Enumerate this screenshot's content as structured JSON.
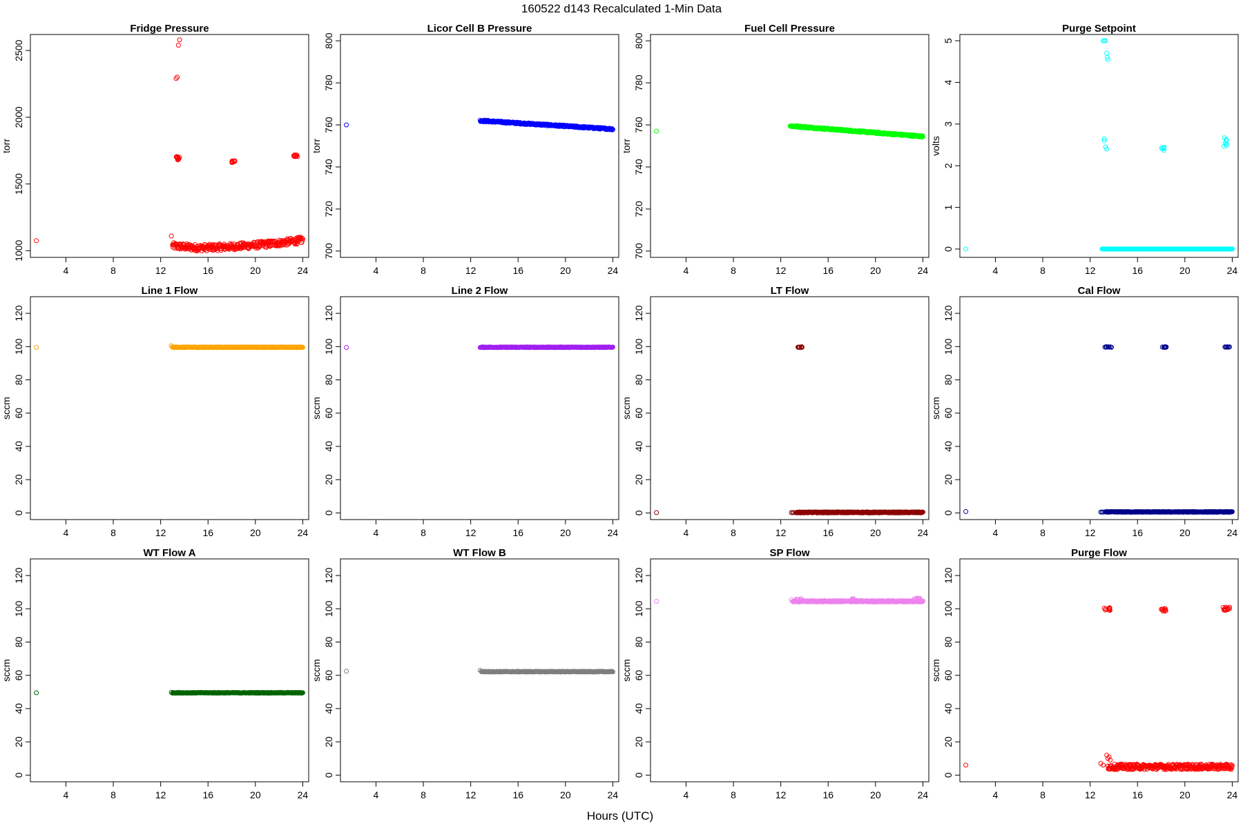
{
  "figure": {
    "title": "160522   d143   Recalculated 1-Min Data",
    "xlabel": "Hours (UTC)"
  },
  "chart_data": [
    {
      "type": "scatter",
      "title": "Fridge Pressure",
      "ylabel": "torr",
      "color": "#ff0000",
      "xlim": [
        1,
        24.5
      ],
      "ylim": [
        950,
        2620
      ],
      "yticks": [
        1000,
        1500,
        2000,
        2500
      ],
      "xticks": [
        4,
        8,
        12,
        16,
        20,
        24
      ],
      "points": [
        [
          1.5,
          1075
        ],
        [
          12.9,
          1110
        ],
        [
          13.3,
          2290
        ],
        [
          13.4,
          2300
        ],
        [
          13.5,
          2540
        ],
        [
          13.6,
          2580
        ]
      ],
      "clusters": [
        {
          "x": [
            13.3,
            13.6
          ],
          "y": [
            1680,
            1705
          ],
          "n": 10
        },
        {
          "x": [
            18.0,
            18.3
          ],
          "y": [
            1660,
            1680
          ],
          "n": 8
        },
        {
          "x": [
            23.2,
            23.6
          ],
          "y": [
            1705,
            1720
          ],
          "n": 10
        }
      ],
      "band": {
        "x0": 13.0,
        "x1": 24.0,
        "y0": 1050,
        "y1": 1080,
        "ymid": 1020,
        "spread": 25
      }
    },
    {
      "type": "scatter",
      "title": "Licor Cell B Pressure",
      "ylabel": "torr",
      "color": "#0000ff",
      "xlim": [
        1,
        24.5
      ],
      "ylim": [
        697,
        803
      ],
      "yticks": [
        700,
        720,
        740,
        760,
        780,
        800
      ],
      "xticks": [
        4,
        8,
        12,
        16,
        20,
        24
      ],
      "points": [
        [
          1.5,
          760
        ]
      ],
      "band": {
        "x0": 12.8,
        "x1": 24.0,
        "y0": 762,
        "y1": 758,
        "spread": 0.4
      }
    },
    {
      "type": "scatter",
      "title": "Fuel Cell Pressure",
      "ylabel": "torr",
      "color": "#00ff00",
      "xlim": [
        1,
        24.5
      ],
      "ylim": [
        697,
        803
      ],
      "yticks": [
        700,
        720,
        740,
        760,
        780,
        800
      ],
      "xticks": [
        4,
        8,
        12,
        16,
        20,
        24
      ],
      "points": [
        [
          1.5,
          757
        ]
      ],
      "band": {
        "x0": 12.8,
        "x1": 24.0,
        "y0": 759.5,
        "y1": 754.5,
        "spread": 0.4
      }
    },
    {
      "type": "scatter",
      "title": "Purge Setpoint",
      "ylabel": "volts",
      "color": "#00ffff",
      "xlim": [
        1,
        24.5
      ],
      "ylim": [
        -0.2,
        5.15
      ],
      "yticks": [
        0,
        1,
        2,
        3,
        4,
        5
      ],
      "xticks": [
        4,
        8,
        12,
        16,
        20,
        24
      ],
      "points": [
        [
          1.5,
          0
        ],
        [
          13.1,
          5.0
        ],
        [
          13.2,
          5.0
        ],
        [
          13.3,
          5.0
        ],
        [
          13.4,
          4.7
        ],
        [
          13.45,
          4.6
        ],
        [
          13.5,
          4.55
        ],
        [
          13.2,
          2.65
        ],
        [
          13.2,
          2.6
        ],
        [
          13.3,
          2.45
        ],
        [
          13.4,
          2.4
        ]
      ],
      "clusters": [
        {
          "x": [
            18.0,
            18.3
          ],
          "y": [
            2.37,
            2.45
          ],
          "n": 6
        },
        {
          "x": [
            23.2,
            23.6
          ],
          "y": [
            2.4,
            2.7
          ],
          "n": 8
        }
      ],
      "band": {
        "x0": 13.0,
        "x1": 24.0,
        "y0": 0,
        "y1": 0,
        "spread": 0
      }
    },
    {
      "type": "scatter",
      "title": "Line 1 Flow",
      "ylabel": "sccm",
      "color": "#ffa500",
      "xlim": [
        1,
        24.5
      ],
      "ylim": [
        -4,
        130
      ],
      "yticks": [
        0,
        20,
        40,
        60,
        80,
        100,
        120
      ],
      "xticks": [
        4,
        8,
        12,
        16,
        20,
        24
      ],
      "points": [
        [
          1.5,
          99.5
        ],
        [
          12.9,
          100.5
        ]
      ],
      "band": {
        "x0": 13.0,
        "x1": 24.0,
        "y0": 99.6,
        "y1": 99.6,
        "spread": 0.2
      }
    },
    {
      "type": "scatter",
      "title": "Line 2 Flow",
      "ylabel": "sccm",
      "color": "#a020f0",
      "xlim": [
        1,
        24.5
      ],
      "ylim": [
        -4,
        130
      ],
      "yticks": [
        0,
        20,
        40,
        60,
        80,
        100,
        120
      ],
      "xticks": [
        4,
        8,
        12,
        16,
        20,
        24
      ],
      "points": [
        [
          1.5,
          99.5
        ]
      ],
      "band": {
        "x0": 12.8,
        "x1": 24.0,
        "y0": 99.6,
        "y1": 99.6,
        "spread": 0.2
      }
    },
    {
      "type": "scatter",
      "title": "LT Flow",
      "ylabel": "sccm",
      "color": "#8b0000",
      "xlim": [
        1,
        24.5
      ],
      "ylim": [
        -4,
        130
      ],
      "yticks": [
        0,
        20,
        40,
        60,
        80,
        100,
        120
      ],
      "xticks": [
        4,
        8,
        12,
        16,
        20,
        24
      ],
      "points": [
        [
          1.5,
          0.2
        ],
        [
          12.9,
          0.2
        ],
        [
          13.0,
          0.2
        ],
        [
          13.1,
          0.2
        ]
      ],
      "clusters": [
        {
          "x": [
            13.4,
            13.8
          ],
          "y": [
            99.4,
            99.9
          ],
          "n": 12
        }
      ],
      "band": {
        "x0": 13.3,
        "x1": 24.0,
        "y0": 0.3,
        "y1": 0.3,
        "spread": 0.3
      }
    },
    {
      "type": "scatter",
      "title": "Cal Flow",
      "ylabel": "sccm",
      "color": "#00008b",
      "xlim": [
        1,
        24.5
      ],
      "ylim": [
        -4,
        130
      ],
      "yticks": [
        0,
        20,
        40,
        60,
        80,
        100,
        120
      ],
      "xticks": [
        4,
        8,
        12,
        16,
        20,
        24
      ],
      "points": [
        [
          1.5,
          0.8
        ],
        [
          12.9,
          0.5
        ],
        [
          13.0,
          0.5
        ],
        [
          13.1,
          0.5
        ]
      ],
      "clusters": [
        {
          "x": [
            13.2,
            13.8
          ],
          "y": [
            99.5,
            99.9
          ],
          "n": 12
        },
        {
          "x": [
            18.0,
            18.5
          ],
          "y": [
            99.5,
            99.9
          ],
          "n": 10
        },
        {
          "x": [
            23.3,
            23.9
          ],
          "y": [
            99.5,
            99.9
          ],
          "n": 12
        }
      ],
      "band": {
        "x0": 13.3,
        "x1": 24.0,
        "y0": 0.6,
        "y1": 0.6,
        "spread": 0.2
      }
    },
    {
      "type": "scatter",
      "title": "WT Flow A",
      "ylabel": "sccm",
      "color": "#006400",
      "xlim": [
        1,
        24.5
      ],
      "ylim": [
        -4,
        130
      ],
      "yticks": [
        0,
        20,
        40,
        60,
        80,
        100,
        120
      ],
      "xticks": [
        4,
        8,
        12,
        16,
        20,
        24
      ],
      "points": [
        [
          1.5,
          49.5
        ],
        [
          12.9,
          49.8
        ]
      ],
      "band": {
        "x0": 13.0,
        "x1": 24.0,
        "y0": 49.5,
        "y1": 49.5,
        "spread": 0.2
      }
    },
    {
      "type": "scatter",
      "title": "WT Flow B",
      "ylabel": "sccm",
      "color": "#7f7f7f",
      "xlim": [
        1,
        24.5
      ],
      "ylim": [
        -4,
        130
      ],
      "yticks": [
        0,
        20,
        40,
        60,
        80,
        100,
        120
      ],
      "xticks": [
        4,
        8,
        12,
        16,
        20,
        24
      ],
      "points": [
        [
          1.5,
          62.5
        ],
        [
          12.8,
          63
        ]
      ],
      "band": {
        "x0": 12.9,
        "x1": 24.0,
        "y0": 62.2,
        "y1": 62.2,
        "spread": 0.2
      }
    },
    {
      "type": "scatter",
      "title": "SP Flow",
      "ylabel": "sccm",
      "color": "#ee82ee",
      "xlim": [
        1,
        24.5
      ],
      "ylim": [
        -4,
        130
      ],
      "yticks": [
        0,
        20,
        40,
        60,
        80,
        100,
        120
      ],
      "xticks": [
        4,
        8,
        12,
        16,
        20,
        24
      ],
      "points": [
        [
          1.5,
          104.5
        ],
        [
          12.9,
          105.5
        ]
      ],
      "clusters": [
        {
          "x": [
            13.2,
            13.8
          ],
          "y": [
            105.5,
            106.5
          ],
          "n": 8
        },
        {
          "x": [
            18.0,
            18.4
          ],
          "y": [
            105.2,
            106
          ],
          "n": 6
        },
        {
          "x": [
            23.2,
            23.8
          ],
          "y": [
            105.5,
            106.5
          ],
          "n": 8
        }
      ],
      "band": {
        "x0": 13.0,
        "x1": 24.0,
        "y0": 104.5,
        "y1": 104.5,
        "spread": 0.4
      }
    },
    {
      "type": "scatter",
      "title": "Purge Flow",
      "ylabel": "sccm",
      "color": "#ff0000",
      "xlim": [
        1,
        24.5
      ],
      "ylim": [
        -4,
        130
      ],
      "yticks": [
        0,
        20,
        40,
        60,
        80,
        100,
        120
      ],
      "xticks": [
        4,
        8,
        12,
        16,
        20,
        24
      ],
      "points": [
        [
          1.5,
          6
        ],
        [
          12.9,
          7
        ],
        [
          13.1,
          6
        ],
        [
          13.4,
          12
        ],
        [
          13.5,
          10
        ],
        [
          13.6,
          11
        ],
        [
          13.7,
          9
        ]
      ],
      "clusters": [
        {
          "x": [
            13.2,
            13.7
          ],
          "y": [
            99,
            101
          ],
          "n": 12
        },
        {
          "x": [
            18.0,
            18.4
          ],
          "y": [
            98.5,
            101
          ],
          "n": 10
        },
        {
          "x": [
            23.2,
            23.8
          ],
          "y": [
            99,
            101
          ],
          "n": 12
        }
      ],
      "band": {
        "x0": 13.5,
        "x1": 24.0,
        "y0": 5,
        "y1": 5,
        "spread": 1.6
      }
    }
  ]
}
